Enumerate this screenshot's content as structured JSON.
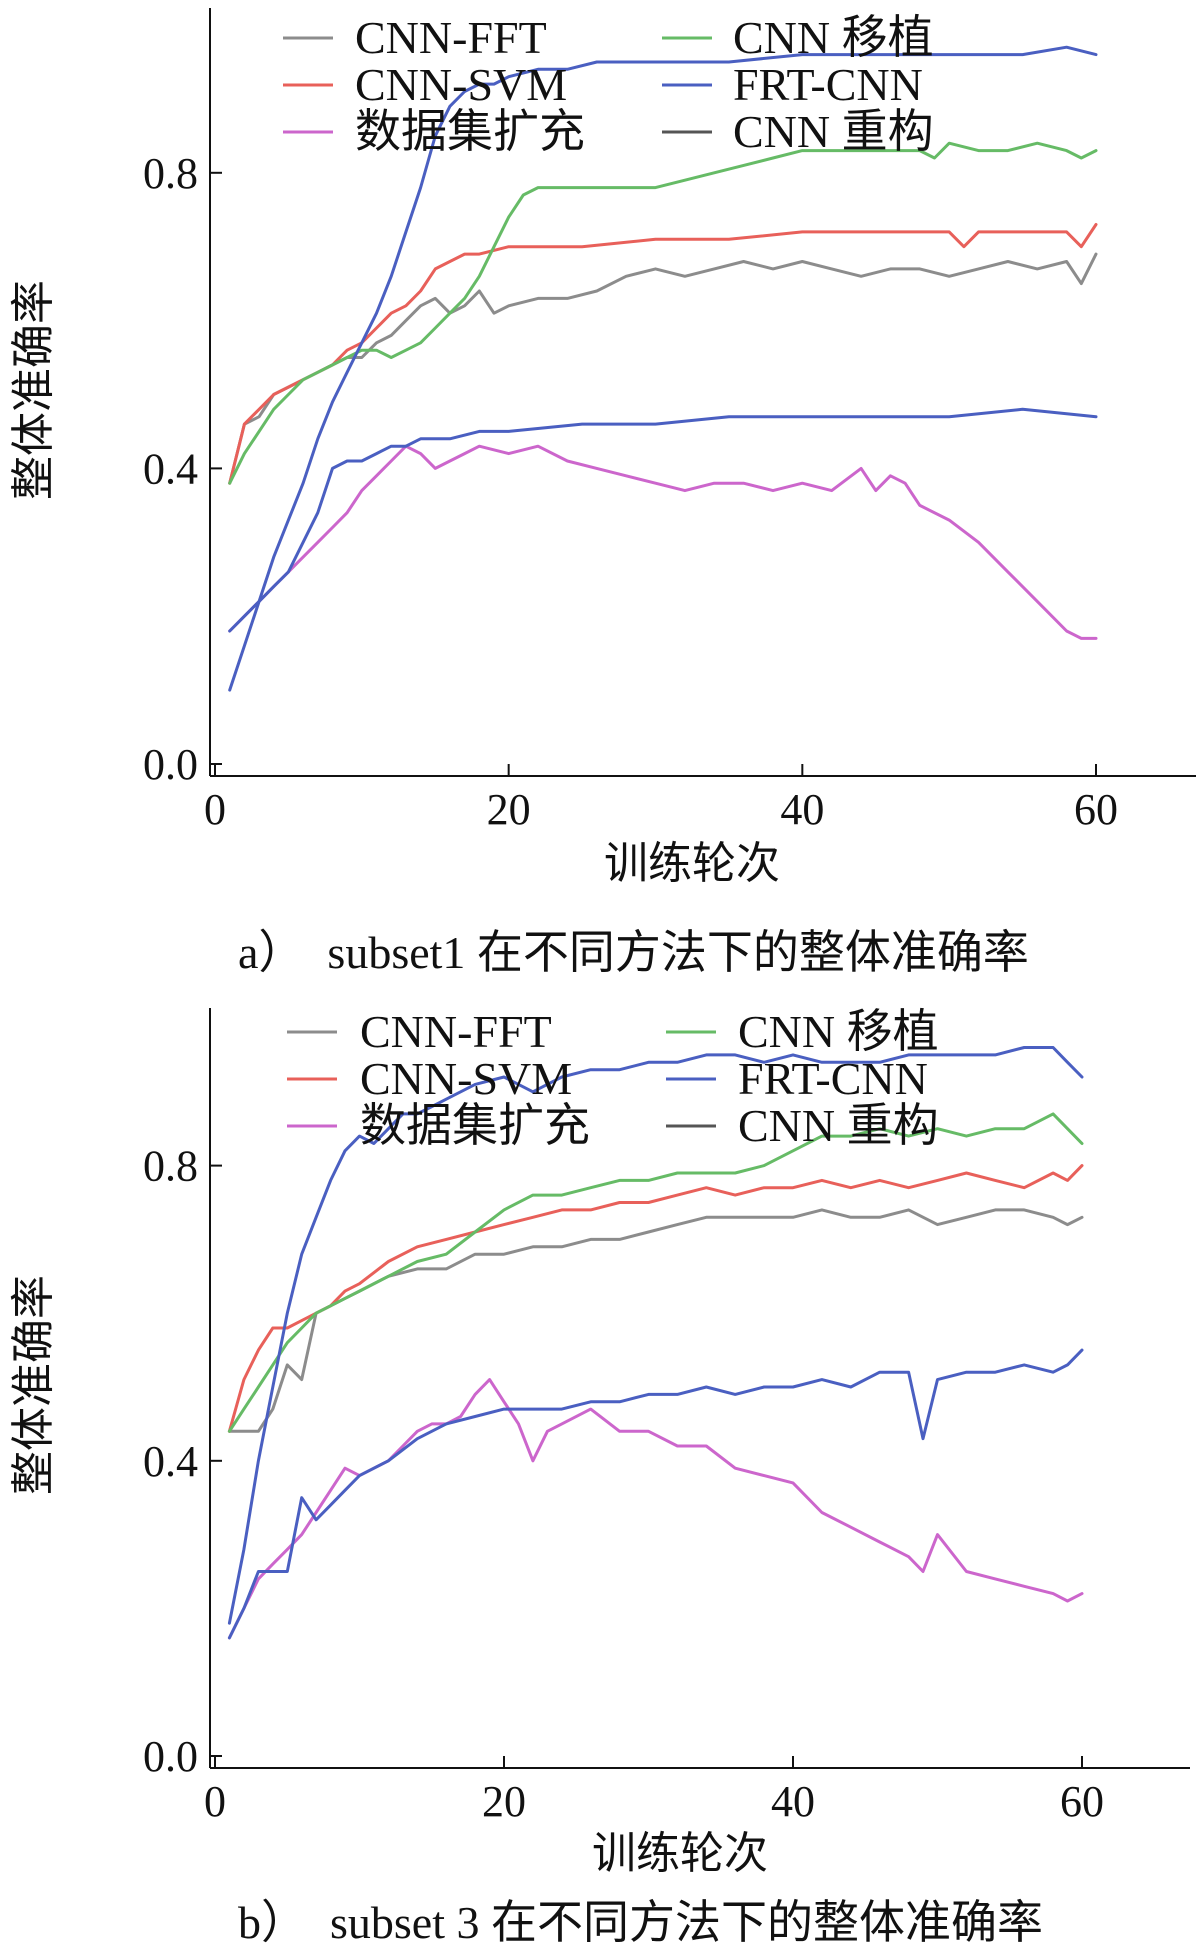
{
  "chart_data": [
    {
      "type": "line",
      "caption": "a）　subset1 在不同方法下的整体准确率",
      "xlabel": "训练轮次",
      "ylabel": "整体准确率",
      "xlim": [
        0,
        60
      ],
      "ylim": [
        0,
        1.0
      ],
      "xticks": [
        0,
        20,
        40,
        60
      ],
      "yticks": [
        0.0,
        0.4,
        0.8
      ],
      "xtick_labels": [
        "0",
        "20",
        "40",
        "60"
      ],
      "ytick_labels": [
        "0.0",
        "0.4",
        "0.8"
      ],
      "grid": false,
      "legend_position": "top",
      "series": [
        {
          "name": "CNN-FFT",
          "color": "#8c8c8c",
          "x": [
            1,
            2,
            3,
            4,
            5,
            6,
            7,
            8,
            9,
            10,
            11,
            12,
            13,
            14,
            15,
            16,
            17,
            18,
            19,
            20,
            22,
            24,
            26,
            28,
            30,
            32,
            34,
            36,
            38,
            40,
            42,
            44,
            46,
            48,
            50,
            52,
            54,
            56,
            58,
            59,
            60
          ],
          "y": [
            0.38,
            0.46,
            0.47,
            0.5,
            0.51,
            0.52,
            0.53,
            0.54,
            0.55,
            0.55,
            0.57,
            0.58,
            0.6,
            0.62,
            0.63,
            0.61,
            0.62,
            0.64,
            0.61,
            0.62,
            0.63,
            0.63,
            0.64,
            0.66,
            0.67,
            0.66,
            0.67,
            0.68,
            0.67,
            0.68,
            0.67,
            0.66,
            0.67,
            0.67,
            0.66,
            0.67,
            0.68,
            0.67,
            0.68,
            0.65,
            0.69
          ]
        },
        {
          "name": "CNN-SVM",
          "color": "#e8605a",
          "x": [
            1,
            2,
            3,
            4,
            5,
            6,
            7,
            8,
            9,
            10,
            11,
            12,
            13,
            14,
            15,
            16,
            17,
            18,
            20,
            25,
            30,
            35,
            40,
            45,
            50,
            51,
            52,
            55,
            58,
            59,
            60
          ],
          "y": [
            0.38,
            0.46,
            0.48,
            0.5,
            0.51,
            0.52,
            0.53,
            0.54,
            0.56,
            0.57,
            0.59,
            0.61,
            0.62,
            0.64,
            0.67,
            0.68,
            0.69,
            0.69,
            0.7,
            0.7,
            0.71,
            0.71,
            0.72,
            0.72,
            0.72,
            0.7,
            0.72,
            0.72,
            0.72,
            0.7,
            0.73
          ]
        },
        {
          "name": "数据集扩充",
          "color": "#cc66cc",
          "x": [
            1,
            2,
            3,
            4,
            5,
            6,
            7,
            8,
            9,
            10,
            11,
            12,
            13,
            14,
            15,
            16,
            17,
            18,
            20,
            22,
            24,
            26,
            28,
            30,
            32,
            34,
            36,
            38,
            40,
            42,
            44,
            45,
            46,
            47,
            48,
            50,
            52,
            54,
            56,
            58,
            59,
            60
          ],
          "y": [
            0.18,
            0.2,
            0.22,
            0.24,
            0.26,
            0.28,
            0.3,
            0.32,
            0.34,
            0.37,
            0.39,
            0.41,
            0.43,
            0.42,
            0.4,
            0.41,
            0.42,
            0.43,
            0.42,
            0.43,
            0.41,
            0.4,
            0.39,
            0.38,
            0.37,
            0.38,
            0.38,
            0.37,
            0.38,
            0.37,
            0.4,
            0.37,
            0.39,
            0.38,
            0.35,
            0.33,
            0.3,
            0.26,
            0.22,
            0.18,
            0.17,
            0.17
          ]
        },
        {
          "name": "CNN 移植",
          "color": "#66bb66",
          "x": [
            1,
            2,
            3,
            4,
            5,
            6,
            7,
            8,
            9,
            10,
            11,
            12,
            13,
            14,
            15,
            16,
            17,
            18,
            19,
            20,
            21,
            22,
            24,
            26,
            28,
            30,
            32,
            34,
            36,
            38,
            40,
            42,
            44,
            46,
            48,
            49,
            50,
            52,
            54,
            56,
            58,
            59,
            60
          ],
          "y": [
            0.38,
            0.42,
            0.45,
            0.48,
            0.5,
            0.52,
            0.53,
            0.54,
            0.55,
            0.56,
            0.56,
            0.55,
            0.56,
            0.57,
            0.59,
            0.61,
            0.63,
            0.66,
            0.7,
            0.74,
            0.77,
            0.78,
            0.78,
            0.78,
            0.78,
            0.78,
            0.79,
            0.8,
            0.81,
            0.82,
            0.83,
            0.83,
            0.83,
            0.83,
            0.83,
            0.82,
            0.84,
            0.83,
            0.83,
            0.84,
            0.83,
            0.82,
            0.83
          ]
        },
        {
          "name": "FRT-CNN",
          "color": "#4a5fc1",
          "x": [
            1,
            2,
            3,
            4,
            5,
            6,
            7,
            8,
            9,
            10,
            11,
            12,
            13,
            14,
            15,
            16,
            17,
            18,
            19,
            20,
            22,
            24,
            26,
            28,
            30,
            35,
            40,
            45,
            50,
            55,
            58,
            60
          ],
          "y": [
            0.1,
            0.16,
            0.22,
            0.28,
            0.33,
            0.38,
            0.44,
            0.49,
            0.53,
            0.57,
            0.61,
            0.66,
            0.72,
            0.78,
            0.85,
            0.89,
            0.91,
            0.92,
            0.92,
            0.93,
            0.94,
            0.94,
            0.95,
            0.95,
            0.95,
            0.95,
            0.96,
            0.96,
            0.96,
            0.96,
            0.97,
            0.96
          ]
        },
        {
          "name": "CNN 重构",
          "color": "#555555",
          "x": [],
          "y": []
        },
        {
          "name": "",
          "color": "#4a5fc1",
          "x": [
            1,
            2,
            3,
            4,
            5,
            6,
            7,
            8,
            9,
            10,
            11,
            12,
            13,
            14,
            15,
            16,
            18,
            20,
            25,
            30,
            35,
            40,
            45,
            50,
            55,
            60
          ],
          "y": [
            0.18,
            0.2,
            0.22,
            0.24,
            0.26,
            0.3,
            0.34,
            0.4,
            0.41,
            0.41,
            0.42,
            0.43,
            0.43,
            0.44,
            0.44,
            0.44,
            0.45,
            0.45,
            0.46,
            0.46,
            0.47,
            0.47,
            0.47,
            0.47,
            0.48,
            0.47
          ]
        }
      ]
    },
    {
      "type": "line",
      "caption": "b）　subset 3 在不同方法下的整体准确率",
      "xlabel": "训练轮次",
      "ylabel": "整体准确率",
      "xlim": [
        0,
        60
      ],
      "ylim": [
        0,
        1.0
      ],
      "xticks": [
        0,
        20,
        40,
        60
      ],
      "yticks": [
        0.0,
        0.4,
        0.8
      ],
      "xtick_labels": [
        "0",
        "20",
        "40",
        "60"
      ],
      "ytick_labels": [
        "0.0",
        "0.4",
        "0.8"
      ],
      "grid": false,
      "legend_position": "top",
      "series": [
        {
          "name": "CNN-FFT",
          "color": "#8c8c8c",
          "x": [
            1,
            2,
            3,
            4,
            5,
            6,
            7,
            8,
            9,
            10,
            12,
            14,
            16,
            18,
            20,
            22,
            24,
            26,
            28,
            30,
            32,
            34,
            36,
            38,
            40,
            42,
            44,
            46,
            48,
            50,
            52,
            54,
            56,
            58,
            59,
            60
          ],
          "y": [
            0.44,
            0.44,
            0.44,
            0.47,
            0.53,
            0.51,
            0.6,
            0.61,
            0.62,
            0.63,
            0.65,
            0.66,
            0.66,
            0.68,
            0.68,
            0.69,
            0.69,
            0.7,
            0.7,
            0.71,
            0.72,
            0.73,
            0.73,
            0.73,
            0.73,
            0.74,
            0.73,
            0.73,
            0.74,
            0.72,
            0.73,
            0.74,
            0.74,
            0.73,
            0.72,
            0.73
          ]
        },
        {
          "name": "CNN-SVM",
          "color": "#e8605a",
          "x": [
            1,
            2,
            3,
            4,
            5,
            6,
            7,
            8,
            9,
            10,
            12,
            14,
            16,
            18,
            20,
            22,
            24,
            26,
            28,
            30,
            32,
            34,
            36,
            38,
            40,
            42,
            44,
            46,
            48,
            50,
            52,
            54,
            56,
            58,
            59,
            60
          ],
          "y": [
            0.44,
            0.51,
            0.55,
            0.58,
            0.58,
            0.59,
            0.6,
            0.61,
            0.63,
            0.64,
            0.67,
            0.69,
            0.7,
            0.71,
            0.72,
            0.73,
            0.74,
            0.74,
            0.75,
            0.75,
            0.76,
            0.77,
            0.76,
            0.77,
            0.77,
            0.78,
            0.77,
            0.78,
            0.77,
            0.78,
            0.79,
            0.78,
            0.77,
            0.79,
            0.78,
            0.8
          ]
        },
        {
          "name": "数据集扩充",
          "color": "#cc66cc",
          "x": [
            1,
            2,
            3,
            4,
            5,
            6,
            7,
            8,
            9,
            10,
            11,
            12,
            13,
            14,
            15,
            16,
            17,
            18,
            19,
            20,
            21,
            22,
            23,
            24,
            26,
            28,
            30,
            32,
            34,
            36,
            38,
            40,
            42,
            44,
            46,
            48,
            49,
            50,
            52,
            54,
            56,
            58,
            59,
            60
          ],
          "y": [
            0.16,
            0.2,
            0.24,
            0.26,
            0.28,
            0.3,
            0.33,
            0.36,
            0.39,
            0.38,
            0.39,
            0.4,
            0.42,
            0.44,
            0.45,
            0.45,
            0.46,
            0.49,
            0.51,
            0.48,
            0.45,
            0.4,
            0.44,
            0.45,
            0.47,
            0.44,
            0.44,
            0.42,
            0.42,
            0.39,
            0.38,
            0.37,
            0.33,
            0.31,
            0.29,
            0.27,
            0.25,
            0.3,
            0.25,
            0.24,
            0.23,
            0.22,
            0.21,
            0.22
          ]
        },
        {
          "name": "CNN 移植",
          "color": "#66bb66",
          "x": [
            1,
            2,
            3,
            4,
            5,
            6,
            7,
            8,
            9,
            10,
            12,
            14,
            16,
            18,
            20,
            22,
            24,
            26,
            28,
            30,
            32,
            34,
            36,
            38,
            40,
            42,
            44,
            46,
            48,
            50,
            52,
            54,
            56,
            57,
            58,
            59,
            60
          ],
          "y": [
            0.44,
            0.47,
            0.5,
            0.53,
            0.56,
            0.58,
            0.6,
            0.61,
            0.62,
            0.63,
            0.65,
            0.67,
            0.68,
            0.71,
            0.74,
            0.76,
            0.76,
            0.77,
            0.78,
            0.78,
            0.79,
            0.79,
            0.79,
            0.8,
            0.82,
            0.84,
            0.84,
            0.85,
            0.84,
            0.85,
            0.84,
            0.85,
            0.85,
            0.86,
            0.87,
            0.85,
            0.83
          ]
        },
        {
          "name": "FRT-CNN",
          "color": "#4a5fc1",
          "x": [
            1,
            2,
            3,
            4,
            5,
            6,
            7,
            8,
            9,
            10,
            11,
            12,
            13,
            14,
            15,
            16,
            18,
            20,
            22,
            24,
            26,
            28,
            30,
            32,
            34,
            36,
            38,
            40,
            42,
            44,
            46,
            48,
            50,
            52,
            54,
            56,
            58,
            59,
            60
          ],
          "y": [
            0.18,
            0.28,
            0.4,
            0.5,
            0.6,
            0.68,
            0.73,
            0.78,
            0.82,
            0.84,
            0.83,
            0.85,
            0.87,
            0.87,
            0.88,
            0.89,
            0.91,
            0.92,
            0.9,
            0.92,
            0.93,
            0.93,
            0.94,
            0.94,
            0.95,
            0.95,
            0.94,
            0.95,
            0.94,
            0.94,
            0.94,
            0.95,
            0.95,
            0.95,
            0.95,
            0.96,
            0.96,
            0.94,
            0.92
          ]
        },
        {
          "name": "CNN 重构",
          "color": "#555555",
          "x": [],
          "y": []
        },
        {
          "name": "",
          "color": "#4a5fc1",
          "x": [
            1,
            2,
            3,
            4,
            5,
            6,
            7,
            8,
            9,
            10,
            12,
            14,
            16,
            18,
            20,
            22,
            24,
            26,
            28,
            30,
            32,
            34,
            36,
            38,
            40,
            42,
            44,
            46,
            48,
            49,
            50,
            52,
            54,
            56,
            58,
            59,
            60
          ],
          "y": [
            0.16,
            0.2,
            0.25,
            0.25,
            0.25,
            0.35,
            0.32,
            0.34,
            0.36,
            0.38,
            0.4,
            0.43,
            0.45,
            0.46,
            0.47,
            0.47,
            0.47,
            0.48,
            0.48,
            0.49,
            0.49,
            0.5,
            0.49,
            0.5,
            0.5,
            0.51,
            0.5,
            0.52,
            0.52,
            0.43,
            0.51,
            0.52,
            0.52,
            0.53,
            0.52,
            0.53,
            0.55
          ]
        }
      ]
    }
  ]
}
